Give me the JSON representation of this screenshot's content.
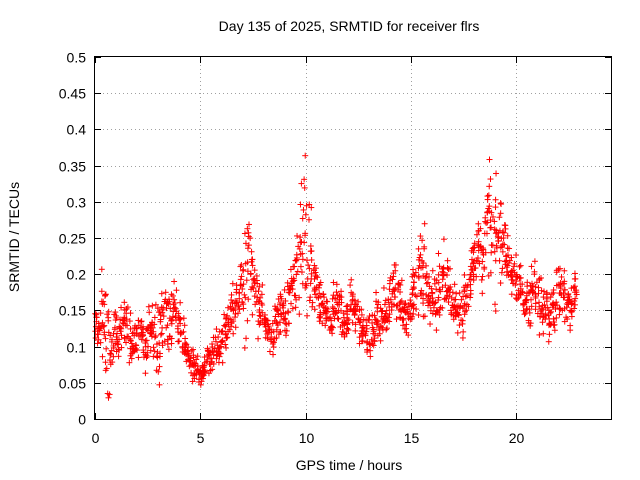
{
  "chart_data": {
    "type": "scatter",
    "title": "Day 135 of 2025, SRMTID for receiver flrs",
    "xlabel": "GPS time / hours",
    "ylabel": "SRMTID / TECUs",
    "xlim": [
      0,
      24.5
    ],
    "ylim": [
      0,
      0.5
    ],
    "xticks": [
      0,
      5,
      10,
      15,
      20
    ],
    "xtick_labels": [
      "0",
      "5",
      "10",
      "15",
      "20"
    ],
    "yticks": [
      0,
      0.05,
      0.1,
      0.15,
      0.2,
      0.25,
      0.3,
      0.35,
      0.4,
      0.45,
      0.5
    ],
    "ytick_labels": [
      "0",
      "0.05",
      "0.1",
      "0.15",
      "0.2",
      "0.25",
      "0.3",
      "0.35",
      "0.4",
      "0.45",
      "0.5"
    ],
    "grid": true,
    "marker": "+",
    "color": "#ff0000",
    "series": [
      {
        "name": "SRMTID",
        "x": [
          0.0,
          0.2,
          0.4,
          0.6,
          0.8,
          1.0,
          1.2,
          1.4,
          1.6,
          1.8,
          2.0,
          2.2,
          2.4,
          2.6,
          2.8,
          3.0,
          3.2,
          3.4,
          3.6,
          3.8,
          4.0,
          4.2,
          4.4,
          4.6,
          4.8,
          5.0,
          5.2,
          5.4,
          5.6,
          5.8,
          6.0,
          6.2,
          6.4,
          6.6,
          6.8,
          7.0,
          7.2,
          7.4,
          7.6,
          7.8,
          8.0,
          8.2,
          8.4,
          8.6,
          8.8,
          9.0,
          9.2,
          9.4,
          9.6,
          9.8,
          10.0,
          10.2,
          10.4,
          10.6,
          10.8,
          11.0,
          11.2,
          11.4,
          11.6,
          11.8,
          12.0,
          12.2,
          12.4,
          12.6,
          12.8,
          13.0,
          13.2,
          13.4,
          13.6,
          13.8,
          14.0,
          14.2,
          14.4,
          14.6,
          14.8,
          15.0,
          15.2,
          15.4,
          15.6,
          15.8,
          16.0,
          16.2,
          16.4,
          16.6,
          16.8,
          17.0,
          17.2,
          17.4,
          17.6,
          17.8,
          18.0,
          18.2,
          18.4,
          18.6,
          18.8,
          19.0,
          19.2,
          19.4,
          19.6,
          19.8,
          20.0,
          20.2,
          20.4,
          20.6,
          20.8,
          21.0,
          21.2,
          21.4,
          21.6,
          21.8,
          22.0,
          22.2,
          22.4,
          22.6,
          22.8
        ],
        "y": [
          0.13,
          0.12,
          0.15,
          0.11,
          0.1,
          0.12,
          0.11,
          0.14,
          0.12,
          0.1,
          0.11,
          0.12,
          0.1,
          0.13,
          0.12,
          0.11,
          0.13,
          0.14,
          0.12,
          0.15,
          0.13,
          0.11,
          0.09,
          0.08,
          0.07,
          0.06,
          0.07,
          0.08,
          0.09,
          0.1,
          0.11,
          0.13,
          0.14,
          0.15,
          0.16,
          0.18,
          0.2,
          0.22,
          0.19,
          0.16,
          0.14,
          0.12,
          0.11,
          0.13,
          0.15,
          0.14,
          0.16,
          0.18,
          0.21,
          0.24,
          0.26,
          0.22,
          0.19,
          0.17,
          0.16,
          0.15,
          0.14,
          0.16,
          0.15,
          0.13,
          0.14,
          0.16,
          0.15,
          0.13,
          0.12,
          0.11,
          0.12,
          0.14,
          0.13,
          0.15,
          0.17,
          0.19,
          0.16,
          0.15,
          0.14,
          0.16,
          0.18,
          0.21,
          0.2,
          0.18,
          0.17,
          0.16,
          0.19,
          0.2,
          0.18,
          0.16,
          0.15,
          0.14,
          0.17,
          0.19,
          0.22,
          0.24,
          0.23,
          0.26,
          0.28,
          0.27,
          0.25,
          0.24,
          0.22,
          0.2,
          0.19,
          0.18,
          0.17,
          0.16,
          0.18,
          0.17,
          0.15,
          0.16,
          0.14,
          0.15,
          0.17,
          0.18,
          0.16,
          0.15,
          0.17
        ],
        "spread": [
          0.03,
          0.04,
          0.08,
          0.12,
          0.04,
          0.05,
          0.07,
          0.05,
          0.06,
          0.05,
          0.04,
          0.04,
          0.05,
          0.05,
          0.06,
          0.1,
          0.05,
          0.06,
          0.08,
          0.06,
          0.05,
          0.04,
          0.03,
          0.03,
          0.02,
          0.02,
          0.02,
          0.03,
          0.03,
          0.04,
          0.04,
          0.04,
          0.05,
          0.05,
          0.05,
          0.07,
          0.12,
          0.1,
          0.06,
          0.06,
          0.05,
          0.04,
          0.04,
          0.04,
          0.05,
          0.05,
          0.05,
          0.06,
          0.1,
          0.14,
          0.16,
          0.1,
          0.07,
          0.05,
          0.04,
          0.04,
          0.04,
          0.05,
          0.05,
          0.04,
          0.04,
          0.05,
          0.05,
          0.04,
          0.03,
          0.04,
          0.04,
          0.05,
          0.04,
          0.05,
          0.05,
          0.06,
          0.05,
          0.05,
          0.04,
          0.05,
          0.06,
          0.1,
          0.08,
          0.06,
          0.06,
          0.05,
          0.06,
          0.06,
          0.05,
          0.05,
          0.05,
          0.05,
          0.06,
          0.05,
          0.06,
          0.07,
          0.08,
          0.1,
          0.13,
          0.15,
          0.08,
          0.06,
          0.05,
          0.05,
          0.05,
          0.05,
          0.05,
          0.05,
          0.06,
          0.05,
          0.05,
          0.05,
          0.05,
          0.05,
          0.06,
          0.06,
          0.05,
          0.05,
          0.05
        ]
      }
    ]
  }
}
